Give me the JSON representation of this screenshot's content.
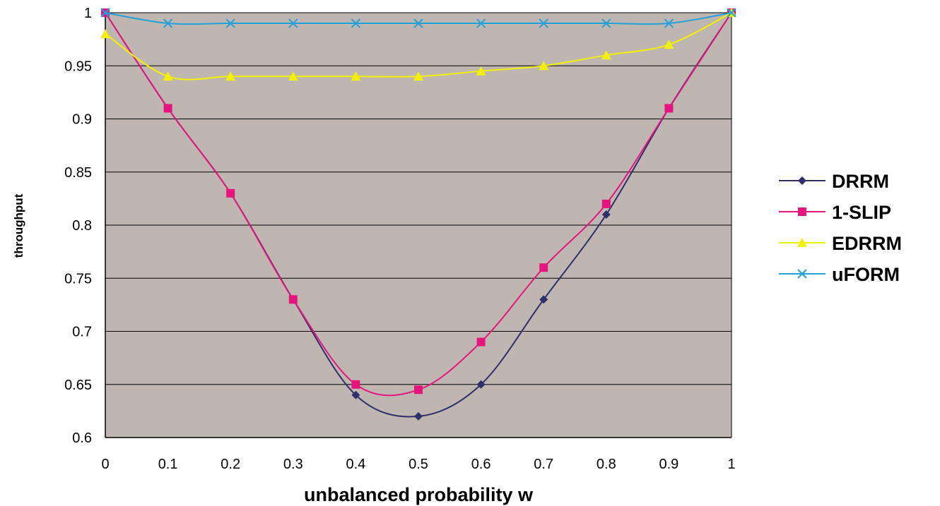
{
  "chart_data": {
    "type": "line",
    "title": "",
    "xlabel": "unbalanced probability w",
    "ylabel": "throughput",
    "x": [
      0,
      0.1,
      0.2,
      0.3,
      0.4,
      0.5,
      0.6,
      0.7,
      0.8,
      0.9,
      1
    ],
    "xticks": [
      "0",
      "0.1",
      "0.2",
      "0.3",
      "0.4",
      "0.5",
      "0.6",
      "0.7",
      "0.8",
      "0.9",
      "1"
    ],
    "yticks": [
      "0.6",
      "0.65",
      "0.7",
      "0.75",
      "0.8",
      "0.85",
      "0.9",
      "0.95",
      "1"
    ],
    "xlim": [
      0,
      1
    ],
    "ylim": [
      0.6,
      1
    ],
    "grid": "horizontal",
    "legend_position": "right",
    "plot_background": "#c0b6b1",
    "series": [
      {
        "name": "DRRM",
        "color": "#2e2f6b",
        "marker": "diamond",
        "values": [
          1,
          0.91,
          0.83,
          0.73,
          0.64,
          0.62,
          0.65,
          0.73,
          0.81,
          0.91,
          1
        ]
      },
      {
        "name": "1-SLIP",
        "color": "#e6157e",
        "marker": "square",
        "values": [
          1,
          0.91,
          0.83,
          0.73,
          0.65,
          0.645,
          0.69,
          0.76,
          0.82,
          0.91,
          1
        ]
      },
      {
        "name": "EDRRM",
        "color": "#f2f200",
        "marker": "triangle",
        "values": [
          0.98,
          0.94,
          0.94,
          0.94,
          0.94,
          0.94,
          0.945,
          0.95,
          0.96,
          0.97,
          1
        ]
      },
      {
        "name": "uFORM",
        "color": "#22a0d8",
        "marker": "x",
        "values": [
          1,
          0.99,
          0.99,
          0.99,
          0.99,
          0.99,
          0.99,
          0.99,
          0.99,
          0.99,
          1
        ]
      }
    ]
  }
}
